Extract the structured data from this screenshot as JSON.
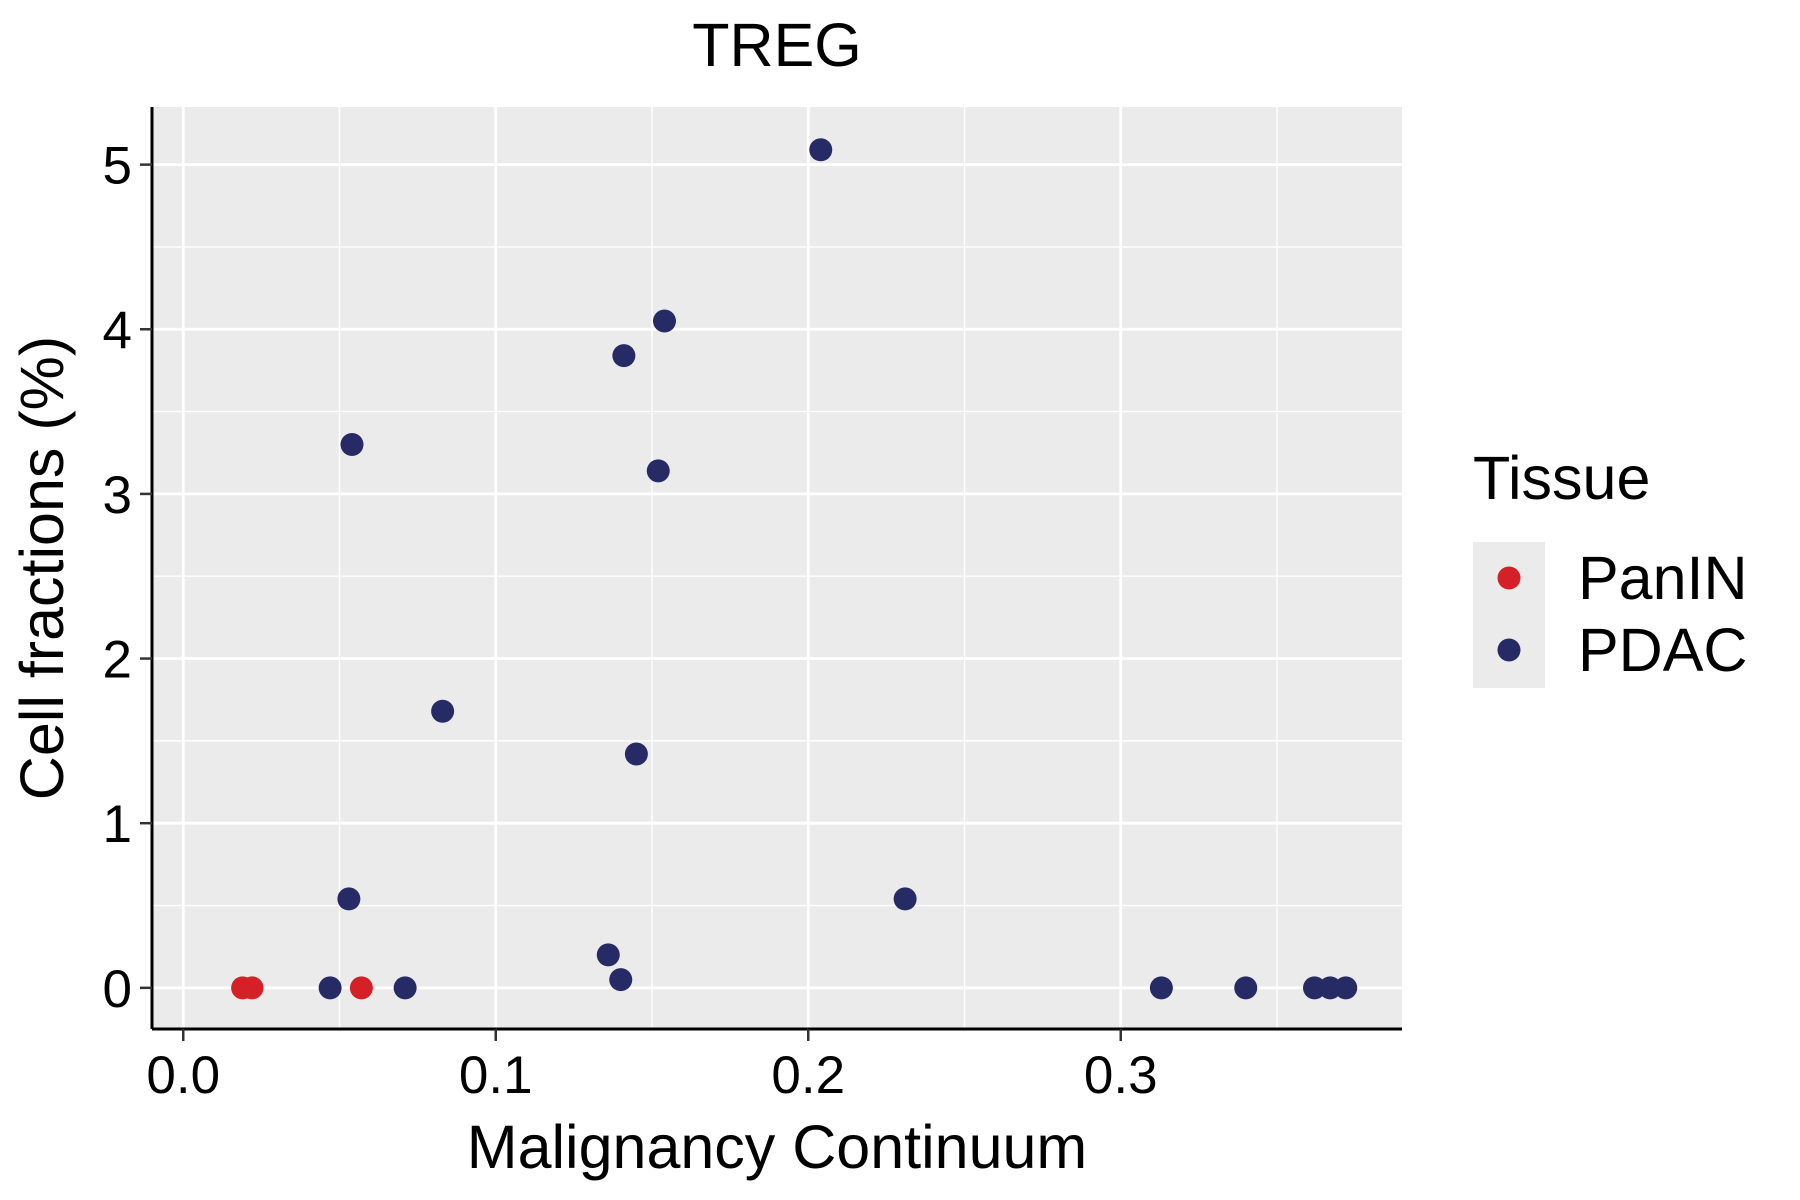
{
  "chart_data": {
    "type": "scatter",
    "title": "TREG",
    "xlabel": "Malignancy Continuum",
    "ylabel": "Cell fractions (%)",
    "xlim": [
      -0.01,
      0.39
    ],
    "ylim": [
      -0.25,
      5.35
    ],
    "xticks": [
      0.0,
      0.1,
      0.2,
      0.3
    ],
    "xtick_labels": [
      "0.0",
      "0.1",
      "0.2",
      "0.3"
    ],
    "yticks": [
      0,
      1,
      2,
      3,
      4,
      5
    ],
    "ytick_labels": [
      "0",
      "1",
      "2",
      "3",
      "4",
      "5"
    ],
    "grid": true,
    "legend": {
      "title": "Tissue",
      "position": "right",
      "entries": [
        {
          "name": "PanIN",
          "color": "#D62027"
        },
        {
          "name": "PDAC",
          "color": "#262A65"
        }
      ]
    },
    "series": [
      {
        "name": "PanIN",
        "color": "#D62027",
        "points": [
          {
            "x": 0.019,
            "y": 0.0
          },
          {
            "x": 0.022,
            "y": 0.0
          },
          {
            "x": 0.057,
            "y": 0.0
          }
        ]
      },
      {
        "name": "PDAC",
        "color": "#262A65",
        "points": [
          {
            "x": 0.047,
            "y": 0.0
          },
          {
            "x": 0.054,
            "y": 3.3
          },
          {
            "x": 0.053,
            "y": 0.54
          },
          {
            "x": 0.071,
            "y": 0.0
          },
          {
            "x": 0.083,
            "y": 1.68
          },
          {
            "x": 0.136,
            "y": 0.2
          },
          {
            "x": 0.14,
            "y": 0.05
          },
          {
            "x": 0.141,
            "y": 3.84
          },
          {
            "x": 0.145,
            "y": 1.42
          },
          {
            "x": 0.152,
            "y": 3.14
          },
          {
            "x": 0.154,
            "y": 4.05
          },
          {
            "x": 0.204,
            "y": 5.09
          },
          {
            "x": 0.231,
            "y": 0.54
          },
          {
            "x": 0.313,
            "y": 0.0
          },
          {
            "x": 0.34,
            "y": 0.0
          },
          {
            "x": 0.362,
            "y": 0.0
          },
          {
            "x": 0.367,
            "y": 0.0
          },
          {
            "x": 0.372,
            "y": 0.0
          }
        ]
      }
    ]
  }
}
